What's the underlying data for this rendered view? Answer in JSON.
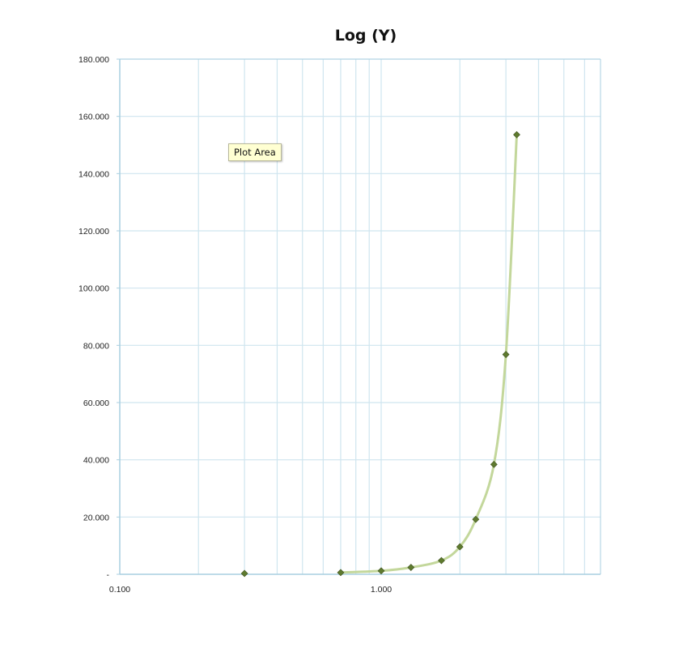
{
  "chart_data": {
    "type": "scatter",
    "title": "Log (Y)",
    "xlabel": "",
    "ylabel": "",
    "xscale": "log",
    "yscale": "linear",
    "xlim": [
      0.1,
      10
    ],
    "ylim": [
      0,
      180
    ],
    "grid": true,
    "x_tick_labels": [
      "0.100",
      "1.000"
    ],
    "y_tick_labels": [
      "-",
      "20.000",
      "40.000",
      "60.000",
      "80.000",
      "100.000",
      "120.000",
      "140.000",
      "160.000",
      "180.000"
    ],
    "series": [
      {
        "x": [
          0.3,
          0.7,
          1.0,
          1.3,
          1.7,
          2.0,
          2.3,
          2.7,
          3.0,
          3.3
        ],
        "y": [
          0.3,
          0.6,
          1.2,
          2.4,
          4.8,
          9.6,
          19.2,
          38.4,
          76.8,
          153.6
        ],
        "line": "smooth",
        "line_from_x": 0.7
      }
    ],
    "colors": {
      "marker": "#5e7a2e",
      "line": "#c3d79b",
      "grid": "#cfe5ef",
      "axis": "#a9cfe0"
    }
  },
  "tooltip": {
    "text": "Plot Area"
  }
}
